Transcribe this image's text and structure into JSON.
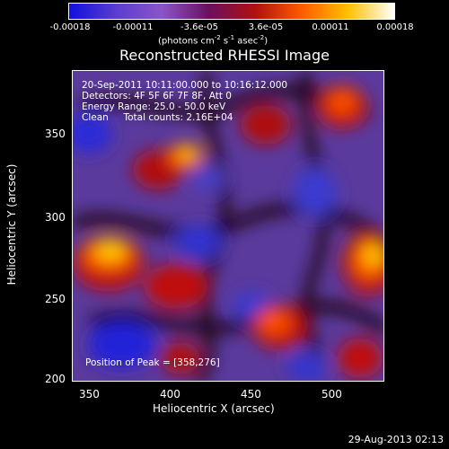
{
  "colorbar": {
    "ticks": [
      "-0.00018",
      "-0.00011",
      "-3.6e-05",
      "3.6e-05",
      "0.00011",
      "0.00018"
    ],
    "units": {
      "base": "(photons cm",
      "exp1": "-2",
      "mid": " s",
      "exp2": "-1",
      "mid2": " asec",
      "exp3": "-2",
      "end": ")"
    },
    "colors": [
      "#1010e0",
      "#5a3dd0",
      "#8a55c8",
      "#6a1060",
      "#b01010",
      "#ff5a00",
      "#ffc000",
      "#ffffff"
    ]
  },
  "title": "Reconstructed RHESSI Image",
  "annotations": {
    "time": "20-Sep-2011 10:11:00.000 to 10:16:12.000",
    "detectors": "Detectors: 4F 5F 6F 7F 8F, Att 0",
    "energy": "Energy Range: 25.0 - 50.0 keV",
    "clean": "Clean     Total counts: 2.16E+04",
    "peak": "Position of Peak = [358,276]"
  },
  "axes": {
    "xlabel": "Heliocentric X (arcsec)",
    "ylabel": "Heliocentric Y (arcsec)",
    "xticks": [
      "350",
      "400",
      "450",
      "500"
    ],
    "yticks": [
      "350",
      "300",
      "250",
      "200"
    ],
    "xrange": [
      333,
      525
    ],
    "yrange": [
      197,
      390
    ]
  },
  "footer": "29-Aug-2013 02:13"
}
